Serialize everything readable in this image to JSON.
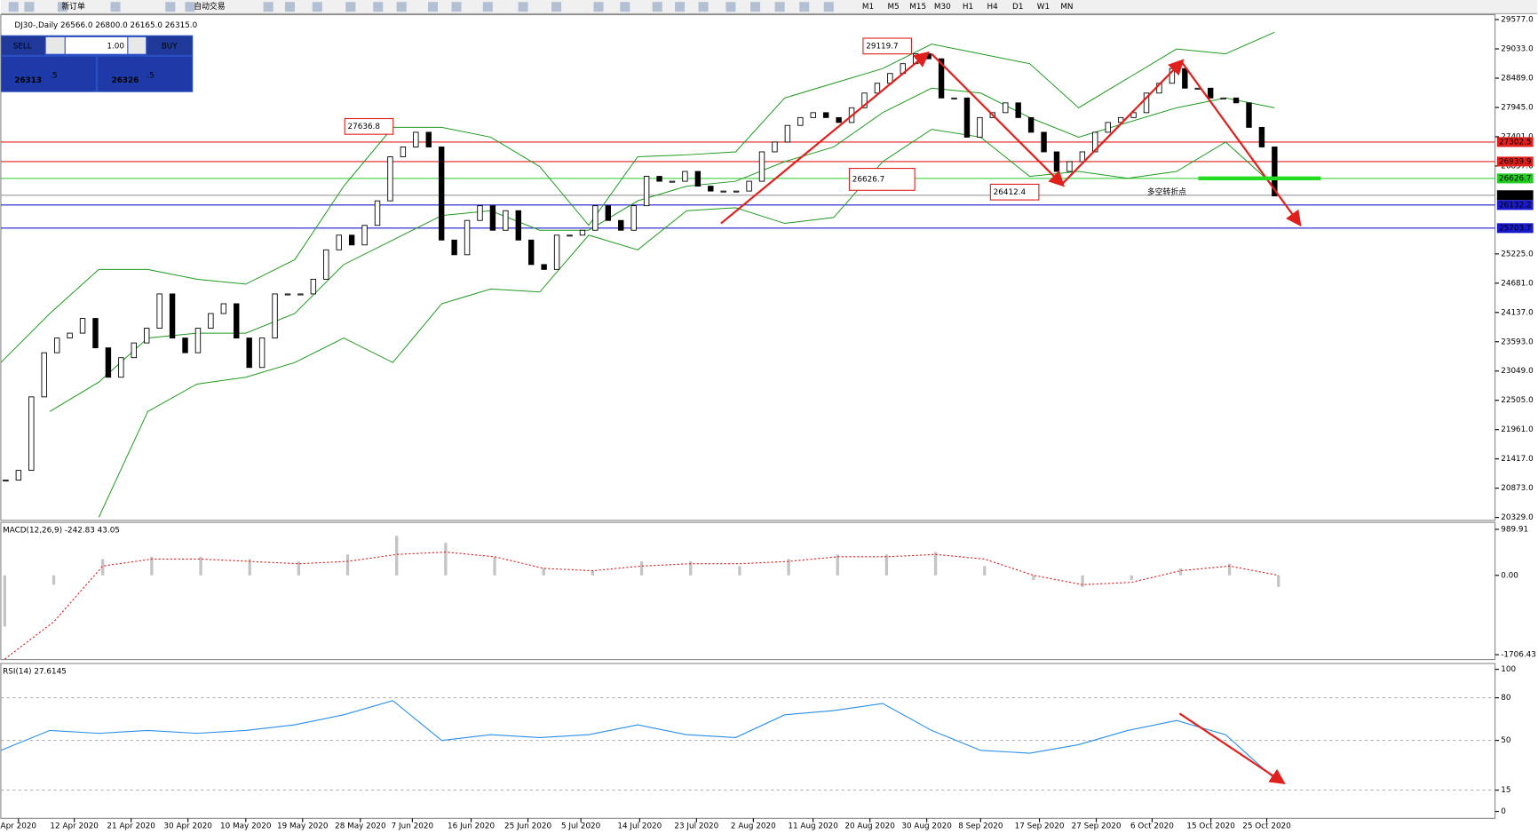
{
  "toolbar": {
    "items": [
      "新订单",
      "自动交易"
    ],
    "timeframes": [
      "M1",
      "M5",
      "M15",
      "M30",
      "H1",
      "H4",
      "D1",
      "W1",
      "MN"
    ]
  },
  "trade_panel": {
    "sell": "SELL",
    "buy": "BUY",
    "lots": "1.00",
    "bid_big": "26313",
    "bid_small": ".5",
    "ask_big": "26326",
    "ask_small": ".5"
  },
  "main_chart": {
    "header": "DJ30-,Daily  26566.0 26800.0 26165.0 26315.0",
    "ylim": [
      20293,
      29613
    ],
    "yticks": [
      {
        "value": 29577,
        "label": "29577.0"
      },
      {
        "value": 29033,
        "label": "29033.0"
      },
      {
        "value": 28489,
        "label": "28489.0"
      },
      {
        "value": 27945,
        "label": "27945.0"
      },
      {
        "value": 27401,
        "label": "27401.0"
      },
      {
        "value": 26857,
        "label": "26857.0"
      },
      {
        "value": 25225,
        "label": "25225.0"
      },
      {
        "value": 24681,
        "label": "24681.0"
      },
      {
        "value": 24137,
        "label": "24137.0"
      },
      {
        "value": 23593,
        "label": "23593.0"
      },
      {
        "value": 23049,
        "label": "23049.0"
      },
      {
        "value": 22505,
        "label": "22505.0"
      },
      {
        "value": 21961,
        "label": "21961.0"
      },
      {
        "value": 21417,
        "label": "21417.0"
      },
      {
        "value": 20873,
        "label": "20873.0"
      },
      {
        "value": 20329,
        "label": "20329.0"
      }
    ],
    "closes": [
      21023,
      21204,
      22569,
      23389,
      23662,
      23753,
      24026,
      23480,
      22934,
      23297,
      23571,
      23844,
      24481,
      23662,
      23389,
      23844,
      24117,
      24299,
      23662,
      23115,
      23662,
      24481,
      24481,
      24481,
      24754,
      25300,
      25573,
      25391,
      25755,
      26210,
      27029,
      27211,
      27484,
      27211,
      25482,
      25209,
      25846,
      26119,
      25664,
      26027,
      25482,
      25027,
      24936,
      25573,
      25573,
      25664,
      26119,
      25846,
      25664,
      26119,
      26665,
      26574,
      26574,
      26756,
      26483,
      26392,
      26392,
      26392,
      26574,
      27120,
      27302,
      27611,
      27757,
      27848,
      27757,
      27666,
      27939,
      28212,
      28394,
      28576,
      28758,
      28941,
      28849,
      28121,
      28121,
      27393,
      27757,
      27848,
      28030,
      27757,
      27484,
      27120,
      26756,
      26938,
      27120,
      27484,
      27666,
      27757,
      27848,
      28212,
      28394,
      28667,
      28303,
      28303,
      28121,
      28121,
      28030,
      27575,
      27211,
      26301
    ],
    "bands": {
      "color": "#1f9a1f",
      "upper": [
        23207,
        24117,
        24936,
        24936,
        24754,
        24663,
        25118,
        26483,
        27575,
        27575,
        27393,
        26847,
        25755,
        27029,
        27065,
        27120,
        28121,
        28394,
        28667,
        29122,
        28941,
        28758,
        27939,
        28485,
        29031,
        28941,
        29341
      ],
      "middle": [
        null,
        22297,
        22843,
        23662,
        23753,
        23753,
        24117,
        25027,
        25482,
        25937,
        26027,
        25664,
        25664,
        26210,
        26483,
        26574,
        26938,
        27211,
        27848,
        28303,
        28212,
        27757,
        27393,
        27666,
        27939,
        28121,
        27939
      ],
      "lower": [
        null,
        null,
        20331,
        22297,
        22806,
        22934,
        23207,
        23662,
        23207,
        24299,
        24572,
        24517,
        25573,
        25300,
        26027,
        26082,
        25791,
        25900,
        26938,
        27538,
        27393,
        26665,
        26756,
        26628,
        26756,
        27302,
        26483
      ]
    },
    "levels": [
      {
        "value": 27302.5,
        "color": "#e0201c"
      },
      {
        "value": 26939.9,
        "color": "#e0201c"
      },
      {
        "value": 26626.7,
        "color": "#22cc22"
      },
      {
        "value": {
          "value": 26315,
          "label": "26315.0"
        },
        "color": "#000000"
      },
      {
        "value": 26132.2,
        "color": "#1a1acc"
      },
      {
        "value": 25703.7,
        "color": "#1a1acc"
      }
    ],
    "annotations": [
      "29119.7",
      "27636.8",
      "26626.7",
      "26412.4"
    ],
    "note": "多空转折点"
  },
  "x_labels": [
    "Apr 2020",
    "12 Apr 2020",
    "21 Apr 2020",
    "30 Apr 2020",
    "10 May 2020",
    "19 May 2020",
    "28 May 2020",
    "7 Jun 2020",
    "16 Jun 2020",
    "25 Jun 2020",
    "5 Jul 2020",
    "14 Jul 2020",
    "23 Jul 2020",
    "2 Aug 2020",
    "11 Aug 2020",
    "20 Aug 2020",
    "30 Aug 2020",
    "8 Sep 2020",
    "17 Sep 2020",
    "27 Sep 2020",
    "6 Oct 2020",
    "15 Oct 2020",
    "25 Oct 2020"
  ],
  "macd": {
    "label": "MACD(12,26,9) -242.83 43.05",
    "ylim": [
      -1811,
      1140
    ],
    "yticks": [
      989.91,
      {
        "value": 0,
        "label": "0.00"
      },
      -1706.43
    ],
    "histogram": [
      -1100,
      -200,
      350,
      400,
      400,
      350,
      300,
      450,
      850,
      700,
      400,
      150,
      100,
      300,
      300,
      200,
      350,
      450,
      450,
      500,
      200,
      -100,
      -250,
      -100,
      150,
      250,
      -250
    ],
    "signal": [
      -1800,
      -1000,
      200,
      350,
      350,
      300,
      250,
      300,
      450,
      500,
      400,
      150,
      100,
      200,
      250,
      250,
      300,
      400,
      400,
      450,
      350,
      0,
      -200,
      -150,
      100,
      200,
      0
    ]
  },
  "rsi": {
    "label": "RSI(14) 27.6145",
    "ylim": [
      0,
      100
    ],
    "yticks": [
      100,
      80,
      50,
      15,
      0
    ],
    "levels": [
      80,
      50,
      15
    ],
    "values": [
      43,
      57,
      55,
      57,
      55,
      57,
      61,
      68,
      78,
      50,
      54,
      52,
      54,
      61,
      54,
      52,
      68,
      71,
      76,
      57,
      43,
      41,
      47,
      57,
      64,
      54,
      23
    ]
  }
}
